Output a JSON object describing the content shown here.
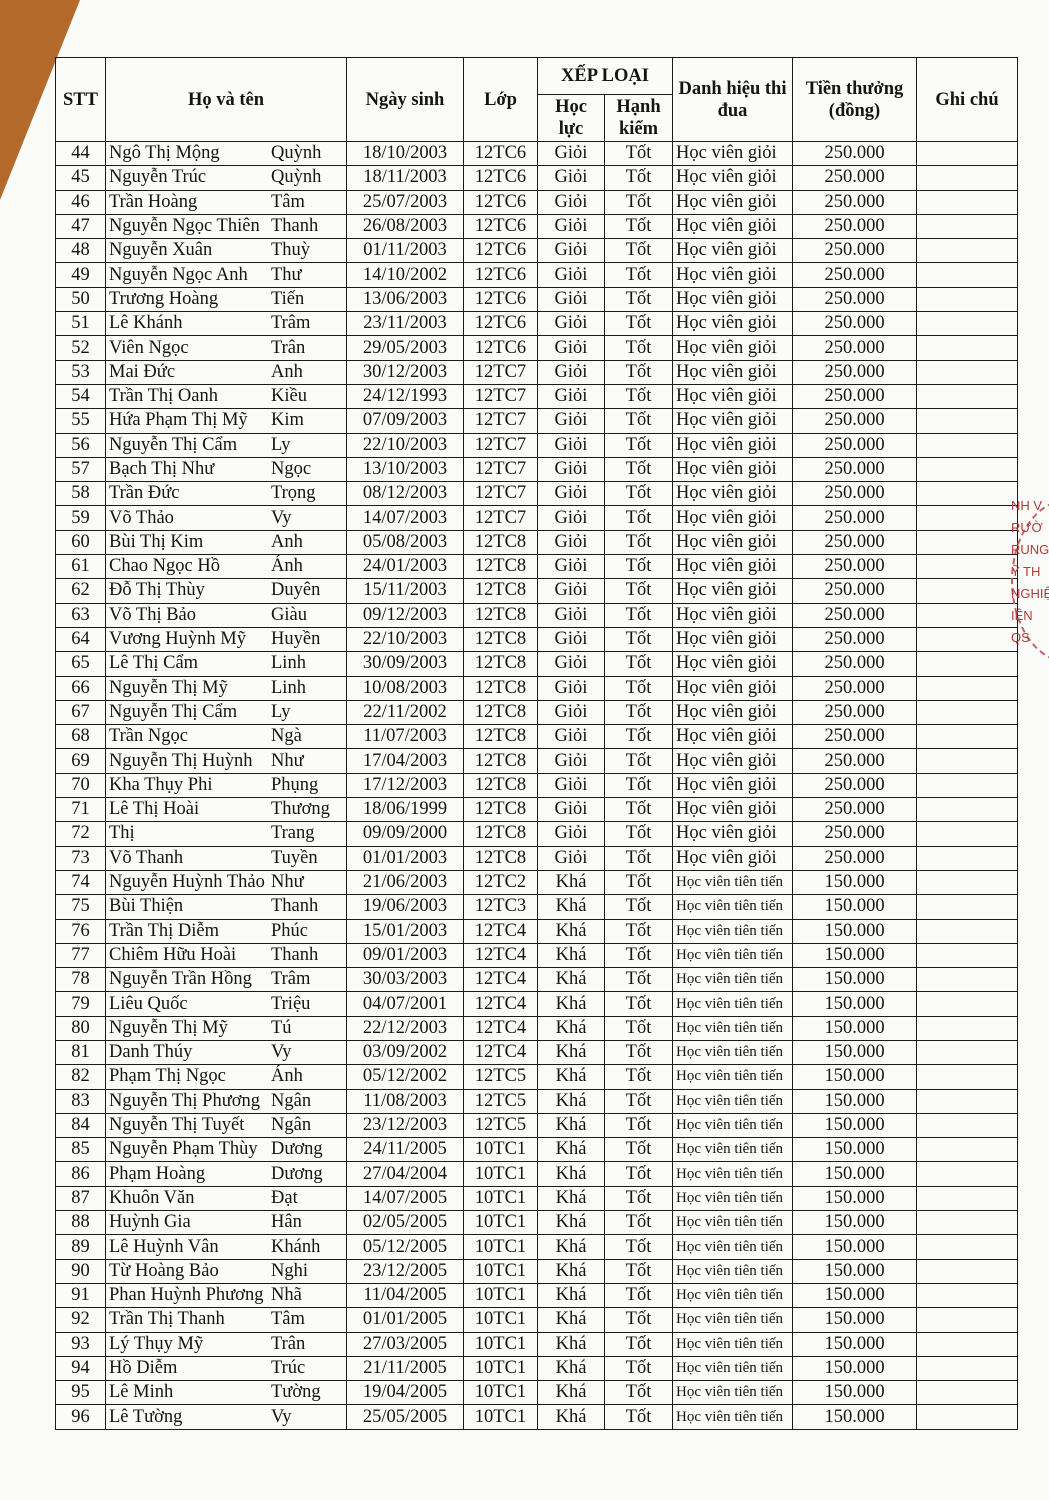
{
  "header": {
    "stt": "STT",
    "ho_va_ten": "Họ và tên",
    "ngay_sinh": "Ngày sinh",
    "lop": "Lớp",
    "xep_loai": "XẾP LOẠI",
    "hoc_luc": "Học lực",
    "hanh_kiem": "Hạnh kiểm",
    "danh_hieu": "Danh hiệu thi đua",
    "tien_thuong": "Tiền thưởng (đồng)",
    "ghi_chu": "Ghi chú"
  },
  "rows": [
    [
      "44",
      "Ngô Thị Mộng",
      "Quỳnh",
      "18/10/2003",
      "12TC6",
      "Giỏi",
      "Tốt",
      "Học viên giỏi",
      "250.000"
    ],
    [
      "45",
      "Nguyễn Trúc",
      "Quỳnh",
      "18/11/2003",
      "12TC6",
      "Giỏi",
      "Tốt",
      "Học viên giỏi",
      "250.000"
    ],
    [
      "46",
      "Trần Hoàng",
      "Tâm",
      "25/07/2003",
      "12TC6",
      "Giỏi",
      "Tốt",
      "Học viên giỏi",
      "250.000"
    ],
    [
      "47",
      "Nguyễn Ngọc Thiên",
      "Thanh",
      "26/08/2003",
      "12TC6",
      "Giỏi",
      "Tốt",
      "Học viên giỏi",
      "250.000"
    ],
    [
      "48",
      "Nguyễn Xuân",
      "Thuỳ",
      "01/11/2003",
      "12TC6",
      "Giỏi",
      "Tốt",
      "Học viên giỏi",
      "250.000"
    ],
    [
      "49",
      "Nguyễn Ngọc Anh",
      "Thư",
      "14/10/2002",
      "12TC6",
      "Giỏi",
      "Tốt",
      "Học viên giỏi",
      "250.000"
    ],
    [
      "50",
      "Trương Hoàng",
      "Tiến",
      "13/06/2003",
      "12TC6",
      "Giỏi",
      "Tốt",
      "Học viên giỏi",
      "250.000"
    ],
    [
      "51",
      "Lê Khánh",
      "Trâm",
      "23/11/2003",
      "12TC6",
      "Giỏi",
      "Tốt",
      "Học viên giỏi",
      "250.000"
    ],
    [
      "52",
      "Viên Ngọc",
      "Trân",
      "29/05/2003",
      "12TC6",
      "Giỏi",
      "Tốt",
      "Học viên giỏi",
      "250.000"
    ],
    [
      "53",
      "Mai Đức",
      "Anh",
      "30/12/2003",
      "12TC7",
      "Giỏi",
      "Tốt",
      "Học viên giỏi",
      "250.000"
    ],
    [
      "54",
      "Trần Thị Oanh",
      "Kiều",
      "24/12/1993",
      "12TC7",
      "Giỏi",
      "Tốt",
      "Học viên giỏi",
      "250.000"
    ],
    [
      "55",
      "Hứa Phạm Thị Mỹ",
      "Kim",
      "07/09/2003",
      "12TC7",
      "Giỏi",
      "Tốt",
      "Học viên giỏi",
      "250.000"
    ],
    [
      "56",
      "Nguyễn Thị Cẩm",
      "Ly",
      "22/10/2003",
      "12TC7",
      "Giỏi",
      "Tốt",
      "Học viên giỏi",
      "250.000"
    ],
    [
      "57",
      "Bạch Thị Như",
      "Ngọc",
      "13/10/2003",
      "12TC7",
      "Giỏi",
      "Tốt",
      "Học viên giỏi",
      "250.000"
    ],
    [
      "58",
      "Trần Đức",
      "Trọng",
      "08/12/2003",
      "12TC7",
      "Giỏi",
      "Tốt",
      "Học viên giỏi",
      "250.000"
    ],
    [
      "59",
      "Võ Thảo",
      "Vy",
      "14/07/2003",
      "12TC7",
      "Giỏi",
      "Tốt",
      "Học viên giỏi",
      "250.000"
    ],
    [
      "60",
      "Bùi Thị Kim",
      "Anh",
      "05/08/2003",
      "12TC8",
      "Giỏi",
      "Tốt",
      "Học viên giỏi",
      "250.000"
    ],
    [
      "61",
      "Chao Ngọc Hồ",
      "Ánh",
      "24/01/2003",
      "12TC8",
      "Giỏi",
      "Tốt",
      "Học viên giỏi",
      "250.000"
    ],
    [
      "62",
      "Đỗ Thị Thùy",
      "Duyên",
      "15/11/2003",
      "12TC8",
      "Giỏi",
      "Tốt",
      "Học viên giỏi",
      "250.000"
    ],
    [
      "63",
      "Võ Thị Bảo",
      "Giàu",
      "09/12/2003",
      "12TC8",
      "Giỏi",
      "Tốt",
      "Học viên giỏi",
      "250.000"
    ],
    [
      "64",
      "Vương Huỳnh Mỹ",
      "Huyền",
      "22/10/2003",
      "12TC8",
      "Giỏi",
      "Tốt",
      "Học viên giỏi",
      "250.000"
    ],
    [
      "65",
      "Lê Thị Cẩm",
      "Linh",
      "30/09/2003",
      "12TC8",
      "Giỏi",
      "Tốt",
      "Học viên giỏi",
      "250.000"
    ],
    [
      "66",
      "Nguyễn Thị Mỹ",
      "Linh",
      "10/08/2003",
      "12TC8",
      "Giỏi",
      "Tốt",
      "Học viên giỏi",
      "250.000"
    ],
    [
      "67",
      "Nguyễn Thị Cẩm",
      "Ly",
      "22/11/2002",
      "12TC8",
      "Giỏi",
      "Tốt",
      "Học viên giỏi",
      "250.000"
    ],
    [
      "68",
      "Trần Ngọc",
      "Ngà",
      "11/07/2003",
      "12TC8",
      "Giỏi",
      "Tốt",
      "Học viên giỏi",
      "250.000"
    ],
    [
      "69",
      "Nguyễn Thị Huỳnh",
      "Như",
      "17/04/2003",
      "12TC8",
      "Giỏi",
      "Tốt",
      "Học viên giỏi",
      "250.000"
    ],
    [
      "70",
      "Kha Thụy Phi",
      "Phụng",
      "17/12/2003",
      "12TC8",
      "Giỏi",
      "Tốt",
      "Học viên giỏi",
      "250.000"
    ],
    [
      "71",
      "Lê Thị Hoài",
      "Thương",
      "18/06/1999",
      "12TC8",
      "Giỏi",
      "Tốt",
      "Học viên giỏi",
      "250.000"
    ],
    [
      "72",
      "Thị",
      "Trang",
      "09/09/2000",
      "12TC8",
      "Giỏi",
      "Tốt",
      "Học viên giỏi",
      "250.000"
    ],
    [
      "73",
      "Võ Thanh",
      "Tuyền",
      "01/01/2003",
      "12TC8",
      "Giỏi",
      "Tốt",
      "Học viên giỏi",
      "250.000"
    ],
    [
      "74",
      "Nguyễn Huỳnh Thảo",
      "Như",
      "21/06/2003",
      "12TC2",
      "Khá",
      "Tốt",
      "Học viên tiên tiến",
      "150.000"
    ],
    [
      "75",
      "Bùi Thiện",
      "Thanh",
      "19/06/2003",
      "12TC3",
      "Khá",
      "Tốt",
      "Học viên tiên tiến",
      "150.000"
    ],
    [
      "76",
      "Trần Thị Diễm",
      "Phúc",
      "15/01/2003",
      "12TC4",
      "Khá",
      "Tốt",
      "Học viên tiên tiến",
      "150.000"
    ],
    [
      "77",
      "Chiêm Hữu Hoài",
      "Thanh",
      "09/01/2003",
      "12TC4",
      "Khá",
      "Tốt",
      "Học viên tiên tiến",
      "150.000"
    ],
    [
      "78",
      "Nguyễn Trần Hồng",
      "Trâm",
      "30/03/2003",
      "12TC4",
      "Khá",
      "Tốt",
      "Học viên tiên tiến",
      "150.000"
    ],
    [
      "79",
      "Liêu Quốc",
      "Triệu",
      "04/07/2001",
      "12TC4",
      "Khá",
      "Tốt",
      "Học viên tiên tiến",
      "150.000"
    ],
    [
      "80",
      "Nguyễn Thị Mỹ",
      "Tú",
      "22/12/2003",
      "12TC4",
      "Khá",
      "Tốt",
      "Học viên tiên tiến",
      "150.000"
    ],
    [
      "81",
      "Danh Thúy",
      "Vy",
      "03/09/2002",
      "12TC4",
      "Khá",
      "Tốt",
      "Học viên tiên tiến",
      "150.000"
    ],
    [
      "82",
      "Phạm Thị Ngọc",
      "Ánh",
      "05/12/2002",
      "12TC5",
      "Khá",
      "Tốt",
      "Học viên tiên tiến",
      "150.000"
    ],
    [
      "83",
      "Nguyễn Thị Phương",
      "Ngân",
      "11/08/2003",
      "12TC5",
      "Khá",
      "Tốt",
      "Học viên tiên tiến",
      "150.000"
    ],
    [
      "84",
      "Nguyễn Thị Tuyết",
      "Ngân",
      "23/12/2003",
      "12TC5",
      "Khá",
      "Tốt",
      "Học viên tiên tiến",
      "150.000"
    ],
    [
      "85",
      "Nguyễn Phạm Thùy",
      "Dương",
      "24/11/2005",
      "10TC1",
      "Khá",
      "Tốt",
      "Học viên tiên tiến",
      "150.000"
    ],
    [
      "86",
      "Phạm Hoàng",
      "Dương",
      "27/04/2004",
      "10TC1",
      "Khá",
      "Tốt",
      "Học viên tiên tiến",
      "150.000"
    ],
    [
      "87",
      "Khuôn Văn",
      "Đạt",
      "14/07/2005",
      "10TC1",
      "Khá",
      "Tốt",
      "Học viên tiên tiến",
      "150.000"
    ],
    [
      "88",
      "Huỳnh Gia",
      "Hân",
      "02/05/2005",
      "10TC1",
      "Khá",
      "Tốt",
      "Học viên tiên tiến",
      "150.000"
    ],
    [
      "89",
      "Lê Huỳnh Vân",
      "Khánh",
      "05/12/2005",
      "10TC1",
      "Khá",
      "Tốt",
      "Học viên tiên tiến",
      "150.000"
    ],
    [
      "90",
      "Từ Hoàng Bảo",
      "Nghi",
      "23/12/2005",
      "10TC1",
      "Khá",
      "Tốt",
      "Học viên tiên tiến",
      "150.000"
    ],
    [
      "91",
      "Phan Huỳnh Phương",
      "Nhã",
      "11/04/2005",
      "10TC1",
      "Khá",
      "Tốt",
      "Học viên tiên tiến",
      "150.000"
    ],
    [
      "92",
      "Trần Thị Thanh",
      "Tâm",
      "01/01/2005",
      "10TC1",
      "Khá",
      "Tốt",
      "Học viên tiên tiến",
      "150.000"
    ],
    [
      "93",
      "Lý Thụy Mỹ",
      "Trân",
      "27/03/2005",
      "10TC1",
      "Khá",
      "Tốt",
      "Học viên tiên tiến",
      "150.000"
    ],
    [
      "94",
      "Hồ Diễm",
      "Trúc",
      "21/11/2005",
      "10TC1",
      "Khá",
      "Tốt",
      "Học viên tiên tiến",
      "150.000"
    ],
    [
      "95",
      "Lê Minh",
      "Tường",
      "19/04/2005",
      "10TC1",
      "Khá",
      "Tốt",
      "Học viên tiên tiến",
      "150.000"
    ],
    [
      "96",
      "Lê Tường",
      "Vy",
      "25/05/2005",
      "10TC1",
      "Khá",
      "Tốt",
      "Học viên tiên tiến",
      "150.000"
    ]
  ],
  "stamp": {
    "lines": [
      "NH V",
      "RƯỜ",
      "RUNG",
      "Ỹ TH",
      "NGHIỆ",
      "IÊN",
      "QS"
    ],
    "color": "#b23a3a"
  }
}
